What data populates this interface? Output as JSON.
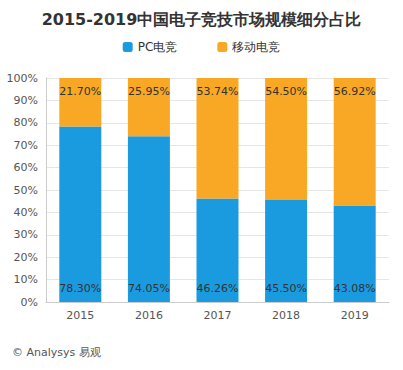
{
  "chart_data": {
    "type": "bar",
    "title": "2015-2019中国电子竞技市场规模细分占比",
    "categories": [
      "2015",
      "2016",
      "2017",
      "2018",
      "2019"
    ],
    "series": [
      {
        "name": "PC电竞",
        "color": "#1a9be0",
        "values": [
          78.3,
          74.05,
          46.26,
          45.5,
          43.08
        ],
        "value_labels": [
          "78.30%",
          "74.05%",
          "46.26%",
          "45.50%",
          "43.08%"
        ]
      },
      {
        "name": "移动电竞",
        "color": "#f9a825",
        "values": [
          21.7,
          25.95,
          53.74,
          54.5,
          56.92
        ],
        "value_labels": [
          "21.70%",
          "25.95%",
          "53.74%",
          "54.50%",
          "56.92%"
        ]
      }
    ],
    "ylim": [
      0,
      100
    ],
    "yticks": [
      {
        "value": 0,
        "label": "0%"
      },
      {
        "value": 10,
        "label": "10%"
      },
      {
        "value": 20,
        "label": "20%"
      },
      {
        "value": 30,
        "label": "30%"
      },
      {
        "value": 40,
        "label": "40%"
      },
      {
        "value": 50,
        "label": "50%"
      },
      {
        "value": 60,
        "label": "60%"
      },
      {
        "value": 70,
        "label": "70%"
      },
      {
        "value": 80,
        "label": "80%"
      },
      {
        "value": 90,
        "label": "90%"
      },
      {
        "value": 100,
        "label": "100%"
      }
    ],
    "stacked": true,
    "data_labels": true,
    "grid": true,
    "legend": "top",
    "annotations": [
      "© Analysys 易观"
    ]
  }
}
